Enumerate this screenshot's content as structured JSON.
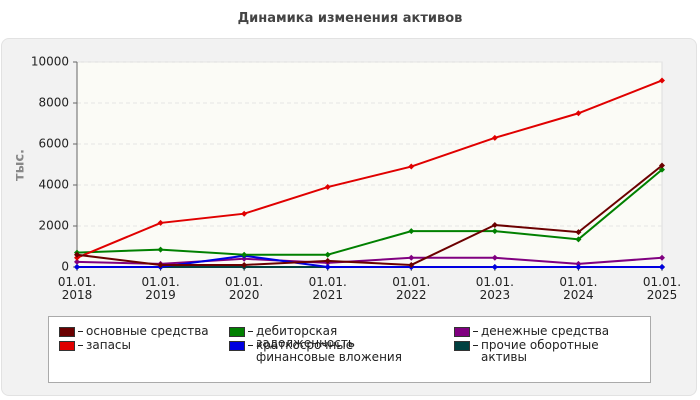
{
  "chart_data": {
    "type": "line",
    "title": "Динамика изменения активов",
    "y_label": "тыс.",
    "categories": [
      "01.01. 2018",
      "01.01. 2019",
      "01.01. 2020",
      "01.01. 2021",
      "01.01. 2022",
      "01.01. 2023",
      "01.01. 2024",
      "01.01. 2025"
    ],
    "series": [
      {
        "name": "основные средства",
        "color": "#6b0000",
        "values": [
          600,
          100,
          100,
          300,
          100,
          2050,
          1700,
          4950
        ]
      },
      {
        "name": "запасы",
        "color": "#e00000",
        "values": [
          450,
          2150,
          2600,
          3900,
          4900,
          6300,
          7500,
          9100
        ]
      },
      {
        "name": "дебиторская задолженность",
        "color": "#008000",
        "values": [
          700,
          850,
          600,
          600,
          1750,
          1750,
          1350,
          4750
        ]
      },
      {
        "name": "краткосрочные финансовые вложения",
        "color": "#0000e0",
        "values": [
          0,
          0,
          550,
          0,
          0,
          0,
          0,
          0
        ]
      },
      {
        "name": "денежные средства",
        "color": "#800080",
        "values": [
          250,
          150,
          400,
          200,
          450,
          450,
          150,
          450
        ]
      },
      {
        "name": "прочие оборотные активы",
        "color": "#004040",
        "values": [
          0,
          0,
          0,
          0,
          0,
          0,
          0,
          0
        ]
      }
    ],
    "ylim": [
      0,
      10000
    ],
    "yticks": [
      0,
      2000,
      4000,
      6000,
      8000,
      10000
    ],
    "grid": true
  }
}
